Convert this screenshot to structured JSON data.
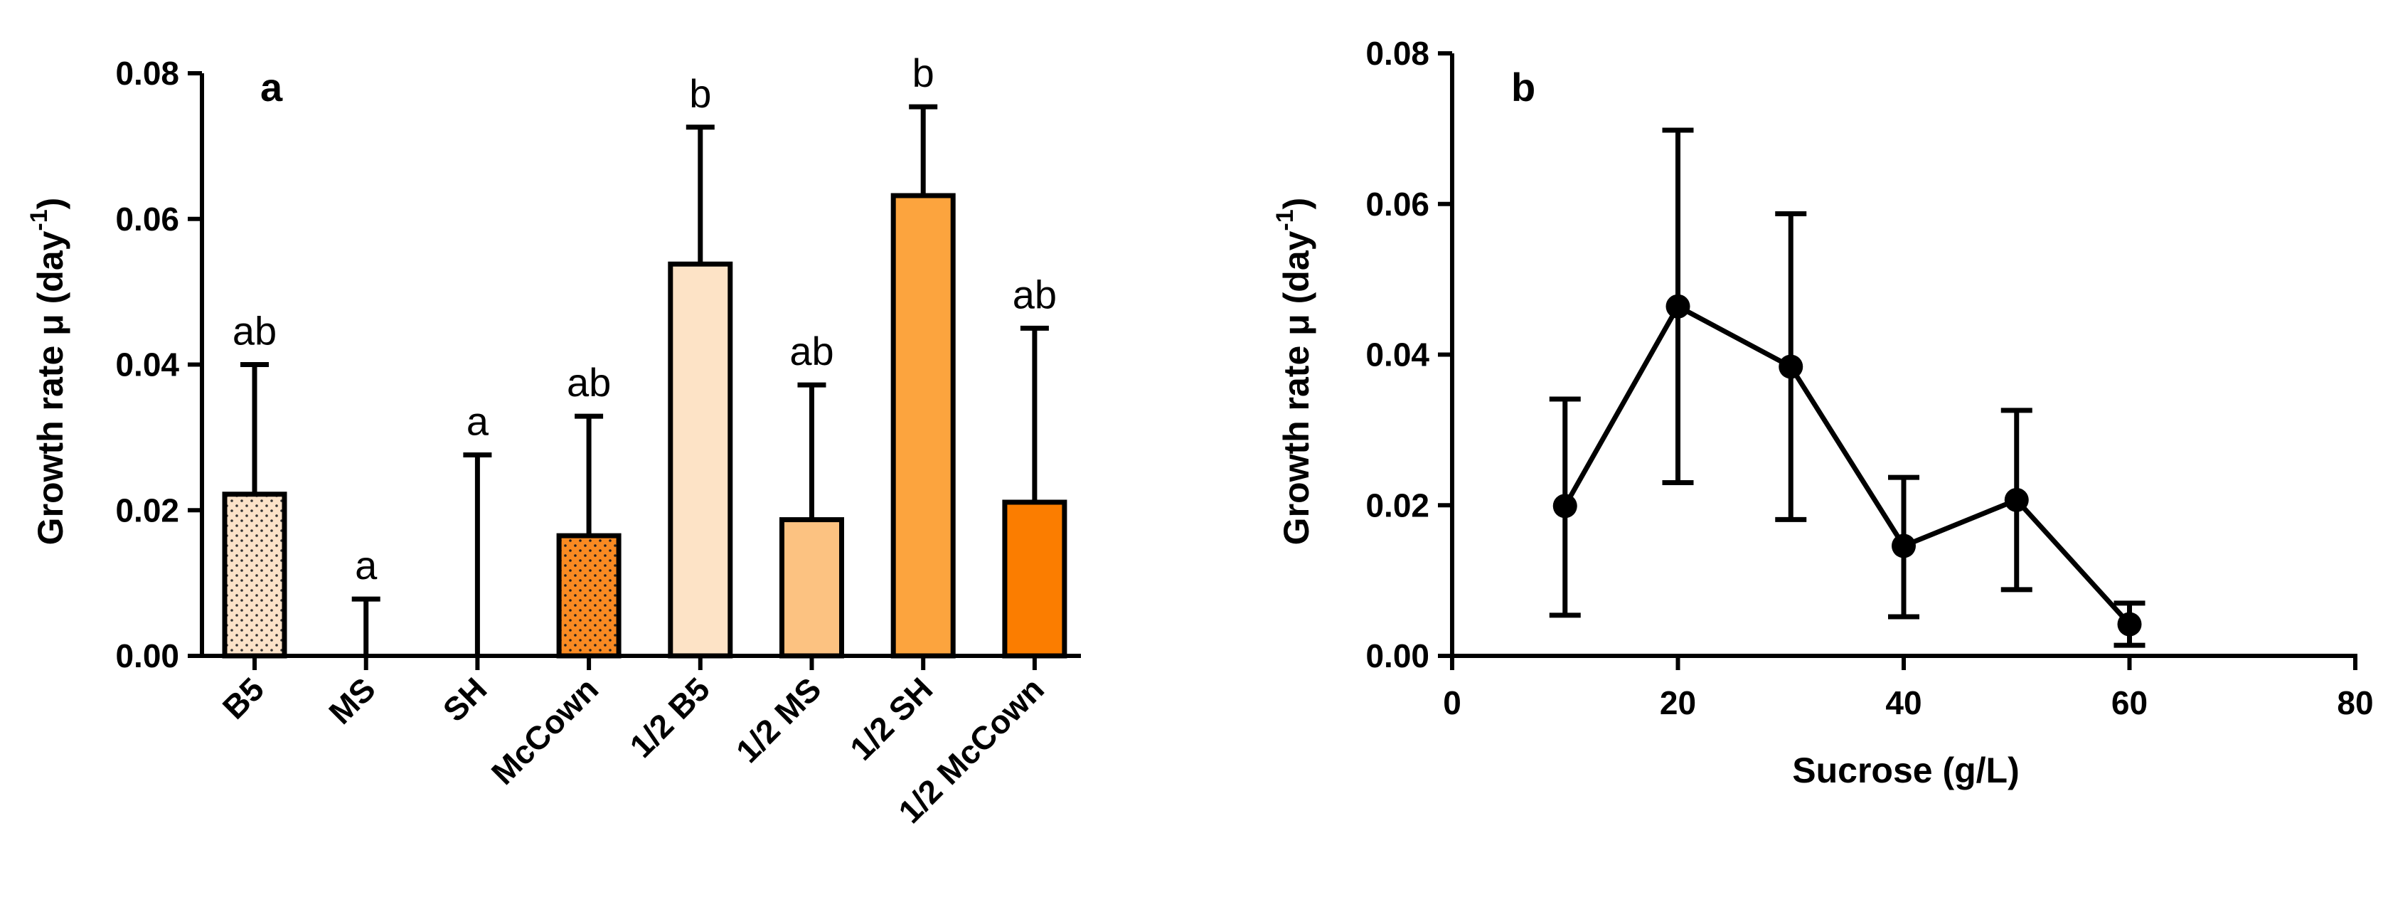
{
  "chart_data": [
    {
      "type": "bar",
      "panel_label": "a",
      "title": "",
      "xlabel": "",
      "ylabel": "Growth rate μ (day",
      "ylabel_superscript": "-1",
      "ylabel_close": ")",
      "ylim": [
        0,
        0.08
      ],
      "yticks": [
        "0.00",
        "0.02",
        "0.04",
        "0.06",
        "0.08"
      ],
      "categories": [
        "B5",
        "MS",
        "SH",
        "McCown",
        "1/2 B5",
        "1/2 MS",
        "1/2 SH",
        "1/2 McCown"
      ],
      "values": [
        0.0222,
        0.0,
        0.0,
        0.0165,
        0.0538,
        0.0187,
        0.0632,
        0.0211
      ],
      "errors": [
        0.0178,
        0.0078,
        0.0276,
        0.0164,
        0.0188,
        0.0185,
        0.0122,
        0.0239
      ],
      "significance": [
        "ab",
        "a",
        "a",
        "ab",
        "b",
        "ab",
        "b",
        "ab"
      ],
      "colors": [
        "#fbe2c8",
        "#ffffff",
        "#ffffff",
        "#f98a22",
        "#fde3c6",
        "#fcc281",
        "#fca43e",
        "#fb7d00"
      ],
      "patterns": [
        "dots",
        "none",
        "none",
        "dots",
        "none",
        "none",
        "none",
        "none"
      ]
    },
    {
      "type": "line",
      "panel_label": "b",
      "title": "",
      "xlabel": "Sucrose (g/L)",
      "ylabel": "Growth rate μ (day",
      "ylabel_superscript": "-1",
      "ylabel_close": ")",
      "xlim": [
        0,
        80
      ],
      "ylim": [
        0,
        0.08
      ],
      "xticks": [
        "0",
        "20",
        "40",
        "60",
        "80"
      ],
      "yticks": [
        "0.00",
        "0.02",
        "0.04",
        "0.06",
        "0.08"
      ],
      "series": [
        {
          "name": "Growth rate",
          "x": [
            10,
            20,
            30,
            40,
            50,
            60
          ],
          "y": [
            0.0199,
            0.0464,
            0.0384,
            0.0146,
            0.0207,
            0.0042
          ],
          "err_low": [
            0.0145,
            0.0234,
            0.0203,
            0.0094,
            0.0119,
            0.0028
          ],
          "err_high": [
            0.0142,
            0.0234,
            0.0203,
            0.0091,
            0.0119,
            0.0028
          ],
          "color": "#000000"
        }
      ]
    }
  ]
}
